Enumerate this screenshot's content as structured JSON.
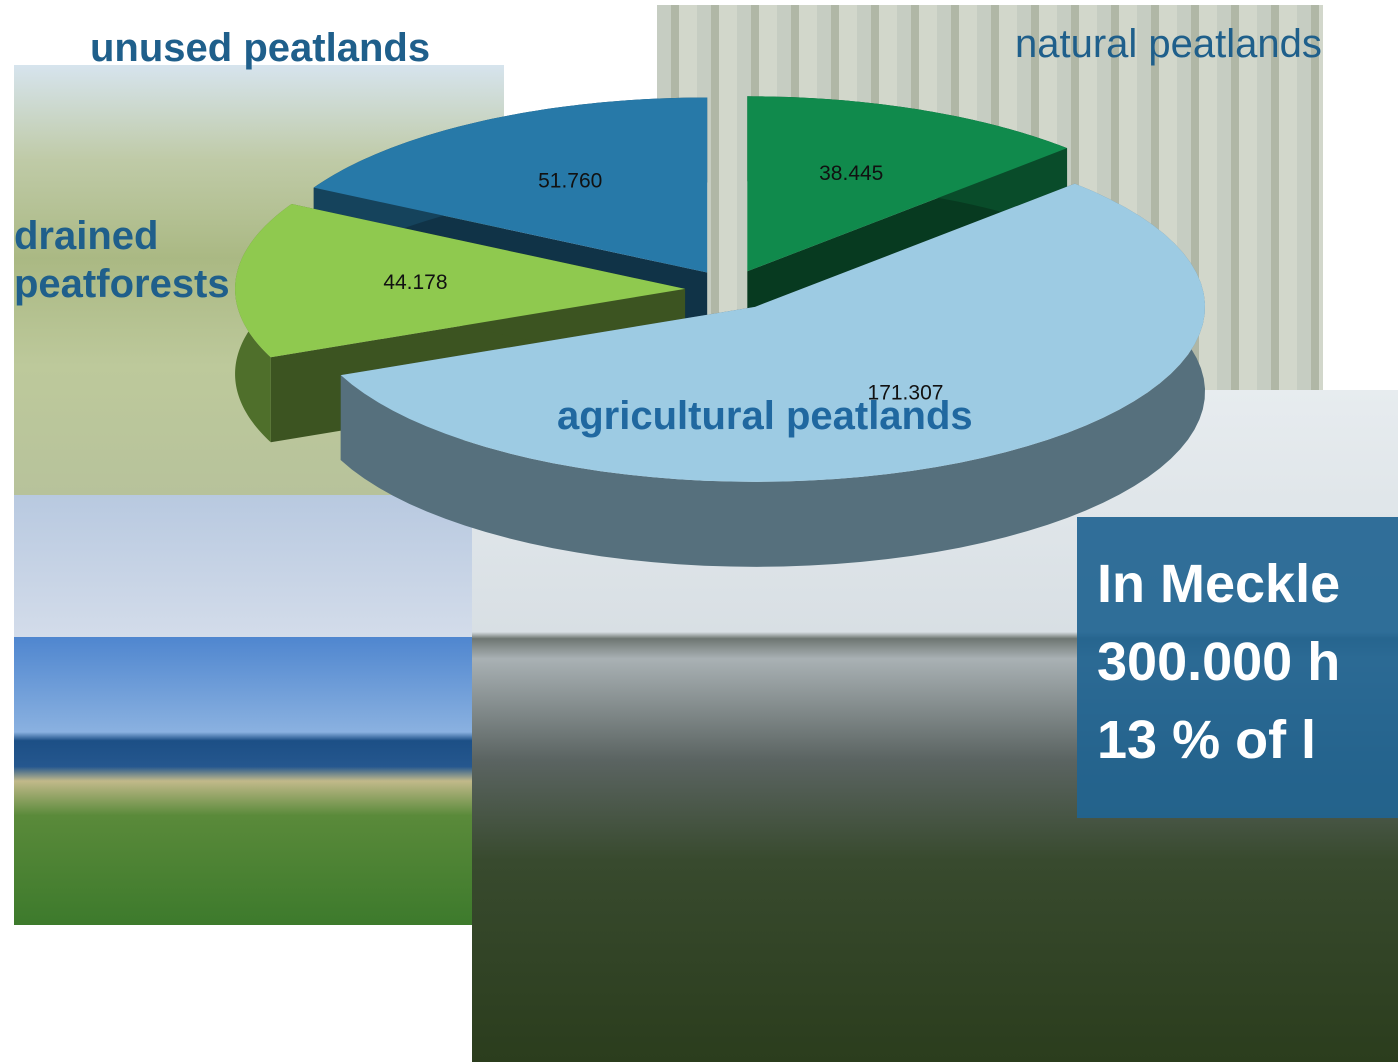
{
  "chart_data": {
    "type": "pie3d",
    "categories": [
      "unused peatlands",
      "natural peatlands",
      "agricultural peatlands",
      "drained peatforests"
    ],
    "values": [
      51760,
      38445,
      171307,
      44178
    ],
    "value_labels": [
      "51.760",
      "38.445",
      "171.307",
      "44.178"
    ],
    "colors": [
      "#2779a8",
      "#108a4c",
      "#9dcbe3",
      "#8fc94f"
    ]
  },
  "textbox": {
    "lines": [
      "In Meckle",
      "300.000 h",
      "13 % of l"
    ]
  }
}
